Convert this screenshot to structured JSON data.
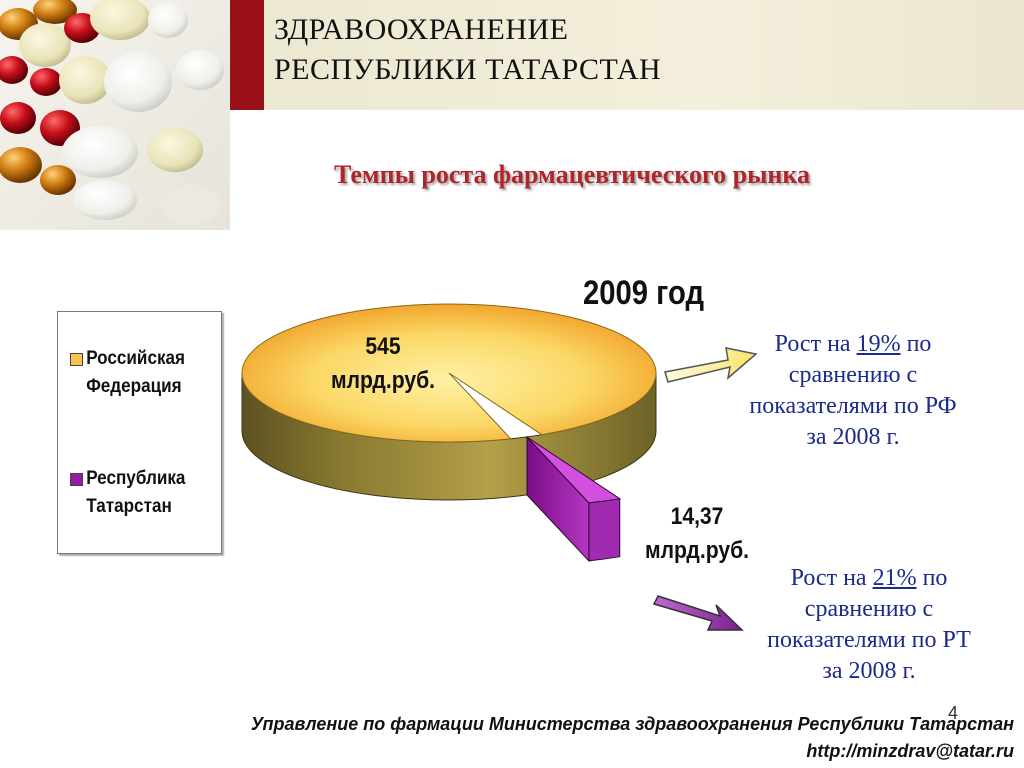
{
  "header": {
    "title_line1": "ЗДРАВООХРАНЕНИЕ",
    "title_line2": "РЕСПУБЛИКИ ТАТАРСТАН"
  },
  "subtitle": "Темпы роста фармацевтического рынка",
  "chart_data": {
    "type": "pie",
    "title": "2009 год",
    "categories": [
      "Российская Федерация",
      "Республика Татарстан"
    ],
    "values": [
      545,
      14.37
    ],
    "value_labels": [
      {
        "value": "545",
        "unit": "млрд.руб."
      },
      {
        "value": "14,37",
        "unit": "млрд.руб."
      }
    ],
    "colors": [
      "#f8c44a",
      "#9a1aa6"
    ],
    "legend_placement": "left",
    "three_d": true,
    "exploded": "Республика Татарстан"
  },
  "annotations": [
    {
      "prefix": "Рост на ",
      "highlight": "19%",
      "suffix": " по",
      "line2": "сравнению с",
      "line3": "показателями по РФ",
      "line4": "за 2008 г."
    },
    {
      "prefix": "Рост на ",
      "highlight": "21%",
      "suffix": " по",
      "line2": "сравнению с",
      "line3": "показателями по РТ",
      "line4": "за 2008 г."
    }
  ],
  "colors": {
    "accent": "#9a1218",
    "subtitle": "#b0252a",
    "annotation_text": "#1c2a8c"
  },
  "footer": {
    "line1": "Управление по фармации Министерства здравоохранения Республики Татарстан",
    "line2": "http://minzdrav@tatar.ru"
  },
  "page_number": "4"
}
